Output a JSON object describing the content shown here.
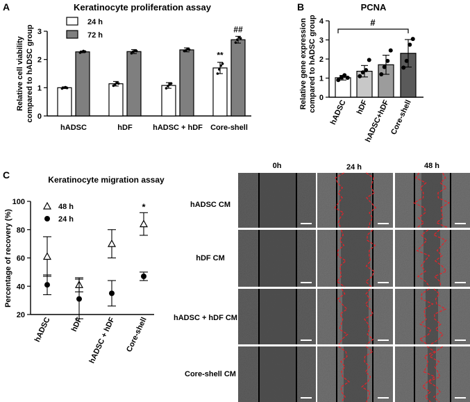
{
  "chart_data": [
    {
      "panel_letter": "A",
      "type": "bar",
      "title": "Keratinocyte proliferation assay",
      "xlabel": "",
      "ylabel_lines": [
        "Relative cell viability",
        "compared to hADSC group"
      ],
      "ylim": [
        0,
        3
      ],
      "yticks": [
        "0",
        "1",
        "2",
        "3"
      ],
      "categories": [
        "hADSC",
        "hDF",
        "hADSC + hDF",
        "Core-shell"
      ],
      "series": [
        {
          "name": "24 h",
          "values": [
            1.0,
            1.14,
            1.08,
            1.7
          ],
          "sd": [
            0.03,
            0.08,
            0.1,
            0.2
          ],
          "points": [
            [
              0.97,
              1.0,
              1.02,
              0.99
            ],
            [
              1.07,
              1.12,
              1.18,
              1.15
            ],
            [
              0.98,
              1.06,
              1.13,
              1.15
            ],
            [
              1.5,
              1.65,
              1.78,
              1.85
            ]
          ]
        },
        {
          "name": "72 h",
          "values": [
            2.27,
            2.28,
            2.34,
            2.7
          ],
          "sd": [
            0.03,
            0.07,
            0.07,
            0.12
          ],
          "points": [
            [
              2.24,
              2.27,
              2.3,
              2.28
            ],
            [
              2.22,
              2.28,
              2.32,
              2.3
            ],
            [
              2.3,
              2.33,
              2.38,
              2.35
            ],
            [
              2.6,
              2.7,
              2.78,
              2.75
            ]
          ]
        }
      ],
      "annotations": [
        {
          "series": 0,
          "category": 3,
          "text": "**"
        },
        {
          "series": 1,
          "category": 3,
          "text": "##"
        }
      ],
      "legend_position": "top-left"
    },
    {
      "panel_letter": "B",
      "type": "bar",
      "title": "PCNA",
      "xlabel": "",
      "ylabel_lines": [
        "Relative gene expression",
        "compared to hADSC group"
      ],
      "ylim": [
        0,
        4
      ],
      "yticks": [
        "0",
        "1",
        "2",
        "3",
        "4"
      ],
      "categories": [
        "hADSC",
        "hDF",
        "hADSC+hDF",
        "Core-shell"
      ],
      "bar_colors": [
        "#ffffff",
        "#c8c8c8",
        "#9c9c9c",
        "#5a5a5a"
      ],
      "values": [
        1.02,
        1.36,
        1.7,
        2.3
      ],
      "sd": [
        0.12,
        0.3,
        0.5,
        0.72
      ],
      "points": [
        [
          0.9,
          1.03,
          1.15,
          1.02
        ],
        [
          1.1,
          1.3,
          1.42,
          1.95
        ],
        [
          1.2,
          1.58,
          1.9,
          2.45
        ],
        [
          1.55,
          1.9,
          2.75,
          3.05
        ]
      ],
      "significance": {
        "from": 0,
        "to": 3,
        "text": "#"
      }
    },
    {
      "panel_letter": "C",
      "type": "scatter",
      "title": "Keratinocyte migration assay",
      "xlabel": "",
      "ylabel": "Percentage of recovery  (%)",
      "ylim": [
        20,
        100
      ],
      "yticks": [
        "20",
        "40",
        "60",
        "80",
        "100"
      ],
      "categories": [
        "hADSC",
        "hDF",
        "hADSC + hDF",
        "Core-shell"
      ],
      "series": [
        {
          "name": "48 h",
          "marker": "open-triangle",
          "values": [
            61,
            41,
            70,
            84
          ],
          "sd": [
            14,
            5,
            10,
            8
          ]
        },
        {
          "name": "24 h",
          "marker": "filled-circle",
          "values": [
            41,
            31,
            35,
            47
          ],
          "sd": [
            7,
            14,
            9,
            3
          ]
        }
      ],
      "annotations": [
        {
          "series": 0,
          "category": 3,
          "text": "*"
        }
      ],
      "legend_position": "top-left"
    }
  ],
  "micrograph_grid": {
    "columns": [
      "0h",
      "24 h",
      "48 h"
    ],
    "rows": [
      "hADSC CM",
      "hDF CM",
      "hADSC + hDF CM",
      "Core-shell CM"
    ]
  },
  "colors": {
    "bar_24h": "#ffffff",
    "bar_72h": "#7f7f7f",
    "wound_edge": "#e0242a",
    "micrograph": "#6b6b6b"
  }
}
